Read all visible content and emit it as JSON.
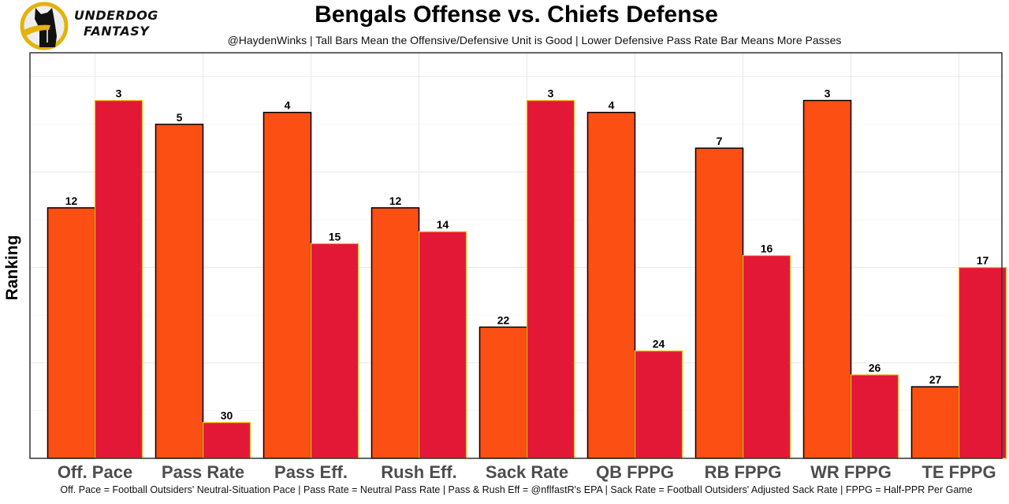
{
  "brand": {
    "line1": "UNDERDOG",
    "line2": "FANTASY",
    "logo_icon": "dog-logo-icon",
    "ring_color": "#E3B20E"
  },
  "chart_data": {
    "type": "bar",
    "title": "Bengals Offense vs. Chiefs Defense",
    "subtitle": "@HaydenWinks | Tall Bars Mean the Offensive/Defensive Unit is Good | Lower Defensive Pass Rate Bar Means More Passes",
    "xlabel": "",
    "ylabel": "Ranking",
    "caption": "Off. Pace = Football Outsiders' Neutral-Situation Pace | Pass Rate = Neutral Pass Rate | Pass & Rush Eff = @nflfastR's EPA | Sack Rate = Football Outsiders' Adjusted Sack Rate | FPPG = Half-PPR Per Game",
    "categories": [
      "Off. Pace",
      "Pass Rate",
      "Pass Eff.",
      "Rush Eff.",
      "Sack Rate",
      "QB FPPG",
      "RB FPPG",
      "WR FPPG",
      "TE FPPG"
    ],
    "series": [
      {
        "name": "Bengals Offense",
        "color": "#FB4F14",
        "stroke": "#000000",
        "values": [
          12,
          5,
          4,
          12,
          22,
          4,
          7,
          3,
          27
        ]
      },
      {
        "name": "Chiefs Defense",
        "color": "#E31837",
        "stroke": "#FFB81C",
        "values": [
          3,
          30,
          15,
          14,
          3,
          24,
          16,
          26,
          17
        ]
      }
    ],
    "bar_height_rule": "bar height = 33 - ranking (rank 1 tallest)",
    "ylim": [
      0,
      34
    ],
    "y_ticks_shown": false,
    "grid": true,
    "legend": "none"
  }
}
